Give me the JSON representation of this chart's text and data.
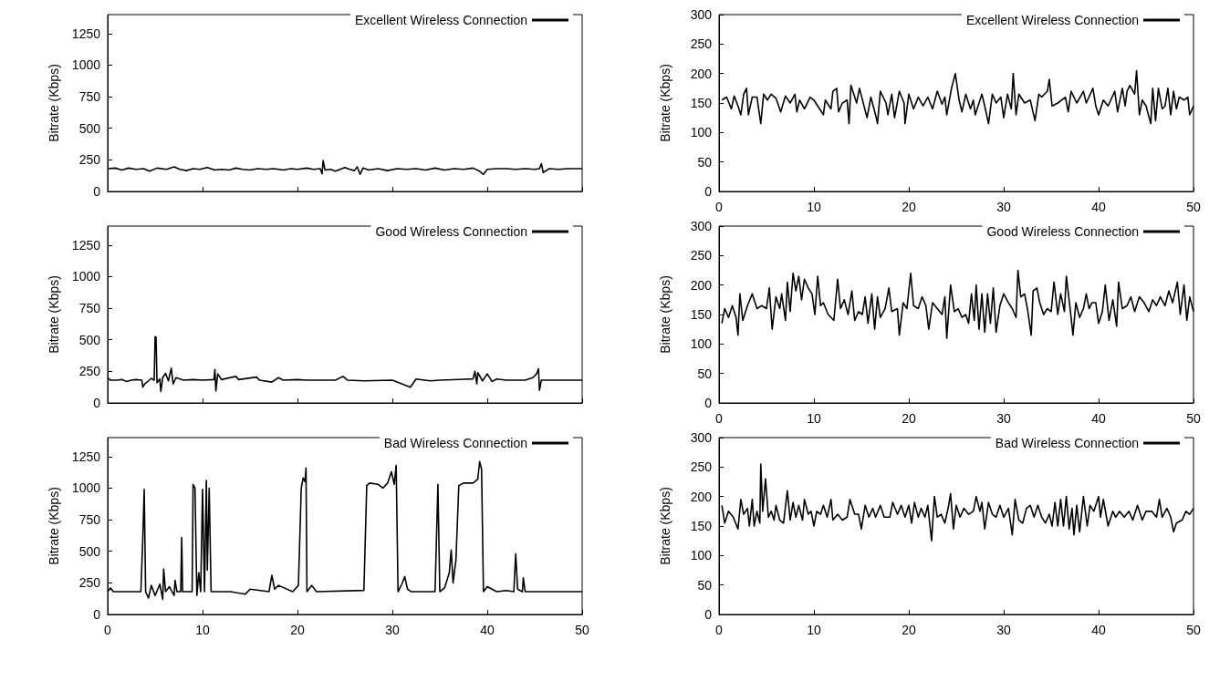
{
  "chart_data": [
    {
      "type": "line",
      "ylabel": "Bitrate (Kbps)",
      "xlim": [
        0,
        50
      ],
      "xticks": [
        0,
        10,
        20,
        30,
        40,
        50
      ],
      "ylim": [
        0,
        1400
      ],
      "yticks": [
        0,
        250,
        500,
        750,
        1000,
        1250
      ],
      "tick_labels": "y",
      "grid": false,
      "legend": "top right",
      "marker": "none",
      "line_style": "solid",
      "series": [
        {
          "name": "Excellent Wireless Connection",
          "color": "#000000",
          "x": [
            0,
            0.8,
            1.5,
            2.2,
            3,
            3.8,
            4.4,
            5.2,
            6.2,
            7,
            7.6,
            8.3,
            9,
            9.7,
            10.5,
            11.3,
            12,
            12.8,
            13.5,
            14.2,
            15,
            15.8,
            16.7,
            17.5,
            18.5,
            19.3,
            20,
            21,
            21.7,
            22.4,
            22.6,
            22.7,
            22.9,
            23.5,
            24,
            25,
            25.5,
            26,
            26.3,
            26.6,
            26.9,
            27.5,
            28.5,
            29.5,
            30.5,
            31.5,
            32.5,
            33.5,
            34.5,
            35.5,
            36.5,
            37.5,
            38.5,
            39.2,
            39.6,
            40,
            41,
            42,
            43,
            44,
            45,
            45.5,
            45.7,
            45.9,
            46.5,
            47.5,
            48.5,
            50
          ],
          "values": [
            180,
            185,
            170,
            185,
            175,
            180,
            160,
            185,
            175,
            195,
            175,
            165,
            180,
            175,
            190,
            170,
            175,
            170,
            185,
            175,
            170,
            180,
            175,
            180,
            170,
            180,
            175,
            185,
            175,
            180,
            140,
            245,
            170,
            175,
            160,
            190,
            175,
            165,
            195,
            135,
            185,
            170,
            180,
            165,
            180,
            175,
            180,
            170,
            185,
            170,
            180,
            175,
            185,
            160,
            135,
            175,
            180,
            180,
            175,
            180,
            175,
            180,
            220,
            150,
            180,
            175,
            180,
            180
          ]
        }
      ]
    },
    {
      "type": "line",
      "ylabel": "Bitrate (Kbps)",
      "xlim": [
        0,
        50
      ],
      "xticks": [
        0,
        10,
        20,
        30,
        40,
        50
      ],
      "ylim": [
        0,
        300
      ],
      "yticks": [
        0,
        50,
        100,
        150,
        200,
        250,
        300
      ],
      "grid": false,
      "legend": "top right",
      "marker": "none",
      "line_style": "solid",
      "series": [
        {
          "name": "Excellent Wireless Connection",
          "color": "#000000",
          "x": [
            0.3,
            0.8,
            1.3,
            1.6,
            2,
            2.3,
            2.6,
            2.9,
            3.1,
            3.5,
            4,
            4.4,
            4.7,
            5.1,
            5.5,
            6,
            6.5,
            7,
            7.5,
            8,
            8.2,
            8.5,
            9,
            9.6,
            10,
            10.6,
            11,
            11.2,
            11.8,
            12,
            12.4,
            12.6,
            13,
            13.5,
            13.7,
            13.9,
            14.5,
            14.8,
            15.2,
            15.6,
            16,
            16.5,
            16.7,
            17,
            17.6,
            17.8,
            18.2,
            18.5,
            19,
            19.5,
            19.6,
            20,
            20.5,
            21,
            21.5,
            22,
            22.5,
            23,
            23.5,
            23.8,
            24,
            24.5,
            24.9,
            25.3,
            25.6,
            26,
            26.5,
            26.8,
            27,
            27.7,
            28,
            28.4,
            28.8,
            29.2,
            29.7,
            30,
            30.4,
            30.8,
            31,
            31.3,
            31.6,
            32.2,
            32.8,
            33.3,
            33.7,
            34,
            34.6,
            34.8,
            35.1,
            35.7,
            36.5,
            36.8,
            37.1,
            37.7,
            38.4,
            38.7,
            39.4,
            39.7,
            40,
            40.5,
            41,
            41.7,
            42,
            42.5,
            42.8,
            43,
            43.3,
            43.8,
            44,
            44.3,
            44.6,
            45,
            45.5,
            45.7,
            46,
            46.3,
            46.7,
            47,
            47.3,
            47.6,
            47.9,
            48.2,
            48.5,
            49,
            49.4,
            49.6,
            50
          ],
          "values": [
            155,
            160,
            140,
            162,
            145,
            130,
            165,
            175,
            130,
            160,
            160,
            115,
            165,
            155,
            165,
            158,
            135,
            162,
            150,
            165,
            135,
            155,
            140,
            160,
            155,
            140,
            130,
            155,
            140,
            170,
            175,
            135,
            150,
            155,
            115,
            180,
            150,
            175,
            150,
            125,
            160,
            130,
            115,
            170,
            150,
            130,
            165,
            125,
            170,
            150,
            115,
            165,
            140,
            160,
            145,
            160,
            140,
            170,
            148,
            160,
            130,
            175,
            200,
            155,
            135,
            165,
            140,
            155,
            130,
            165,
            145,
            115,
            165,
            150,
            160,
            125,
            165,
            140,
            200,
            130,
            165,
            150,
            155,
            120,
            165,
            160,
            170,
            190,
            145,
            150,
            160,
            135,
            170,
            150,
            170,
            150,
            175,
            145,
            130,
            155,
            145,
            170,
            135,
            175,
            145,
            170,
            180,
            165,
            205,
            130,
            155,
            145,
            115,
            175,
            120,
            175,
            140,
            145,
            175,
            130,
            170,
            140,
            160,
            155,
            160,
            130,
            145
          ]
        }
      ]
    },
    {
      "type": "line",
      "ylabel": "Bitrate (Kbps)",
      "xlim": [
        0,
        50
      ],
      "xticks": [
        0,
        10,
        20,
        30,
        40,
        50
      ],
      "ylim": [
        0,
        1400
      ],
      "yticks": [
        0,
        250,
        500,
        750,
        1000,
        1250
      ],
      "tick_labels": "y",
      "grid": false,
      "legend": "top right",
      "marker": "none",
      "line_style": "solid",
      "series": [
        {
          "name": "Good Wireless Connection",
          "color": "#000000",
          "x": [
            0,
            0.3,
            1,
            1.5,
            2,
            2.5,
            3,
            3.6,
            3.7,
            3.9,
            4.3,
            4.6,
            4.9,
            5.0,
            5.1,
            5.2,
            5.5,
            5.6,
            5.8,
            6.1,
            6.4,
            6.7,
            6.9,
            7.2,
            8,
            9,
            10,
            11.2,
            11.3,
            11.4,
            11.6,
            12,
            13.5,
            13.8,
            15.7,
            16,
            17.3,
            18,
            18.5,
            20,
            21,
            24,
            24.8,
            25.3,
            27,
            30,
            31.9,
            32.5,
            34,
            35,
            38.5,
            38.7,
            38.9,
            39,
            39.5,
            40,
            40.5,
            41,
            42,
            44,
            44.8,
            45.2,
            45.4,
            45.5,
            45.7,
            47,
            50
          ],
          "values": [
            200,
            180,
            180,
            185,
            170,
            180,
            185,
            180,
            125,
            150,
            175,
            195,
            180,
            525,
            520,
            160,
            190,
            90,
            200,
            235,
            175,
            275,
            150,
            200,
            180,
            185,
            180,
            185,
            265,
            95,
            230,
            185,
            210,
            185,
            205,
            180,
            165,
            200,
            180,
            185,
            180,
            180,
            210,
            180,
            175,
            180,
            125,
            190,
            175,
            180,
            190,
            250,
            150,
            240,
            175,
            230,
            170,
            190,
            180,
            180,
            200,
            230,
            270,
            100,
            180,
            180,
            180
          ]
        }
      ]
    },
    {
      "type": "line",
      "ylabel": "Bitrate (Kbps)",
      "xlim": [
        0,
        50
      ],
      "xticks": [
        0,
        10,
        20,
        30,
        40,
        50
      ],
      "ylim": [
        0,
        300
      ],
      "yticks": [
        0,
        50,
        100,
        150,
        200,
        250,
        300
      ],
      "grid": false,
      "legend": "top right",
      "marker": "none",
      "line_style": "solid",
      "series": [
        {
          "name": "Good Wireless Connection",
          "color": "#000000",
          "x": [
            0.3,
            0.6,
            1,
            1.4,
            1.8,
            2,
            2.2,
            2.5,
            3,
            3.5,
            4,
            4.5,
            5,
            5.3,
            5.6,
            6,
            6.4,
            6.6,
            7,
            7.2,
            7.5,
            7.8,
            8.1,
            8.4,
            8.7,
            9,
            9.4,
            9.8,
            10.1,
            10.4,
            10.7,
            11,
            11.5,
            12.1,
            12.5,
            12.8,
            13.2,
            13.6,
            14,
            14.3,
            14.7,
            15.1,
            15.4,
            15.7,
            16.1,
            16.4,
            16.7,
            17,
            17.5,
            17.9,
            18.2,
            18.8,
            19,
            19.4,
            19.8,
            20.2,
            20.5,
            21,
            21.4,
            21.8,
            22.1,
            22.5,
            23,
            23.5,
            23.8,
            24,
            24.4,
            24.8,
            25.2,
            25.6,
            26,
            26.3,
            26.6,
            26.9,
            27.1,
            27.4,
            27.7,
            28,
            28.3,
            28.6,
            28.9,
            29.2,
            29.6,
            30,
            30.5,
            30.9,
            31.3,
            31.5,
            31.8,
            32.2,
            32.5,
            32.9,
            33.1,
            33.5,
            33.8,
            34.2,
            34.6,
            35,
            35.3,
            35.7,
            36,
            36.4,
            36.6,
            37,
            37.3,
            37.6,
            38,
            38.4,
            38.7,
            39,
            39.3,
            39.7,
            40,
            40.4,
            40.7,
            41.1,
            41.5,
            41.9,
            42.1,
            42.5,
            43,
            43.4,
            43.8,
            44.3,
            44.8,
            45.3,
            45.7,
            46.1,
            46.5,
            47,
            47.4,
            47.8,
            48.3,
            48.6,
            49,
            49.3,
            49.6,
            50
          ],
          "values": [
            135,
            160,
            145,
            165,
            145,
            115,
            185,
            140,
            165,
            185,
            160,
            165,
            160,
            195,
            125,
            180,
            160,
            185,
            140,
            205,
            155,
            220,
            190,
            215,
            175,
            210,
            195,
            185,
            150,
            215,
            165,
            170,
            150,
            140,
            210,
            160,
            175,
            150,
            190,
            140,
            155,
            150,
            180,
            135,
            185,
            125,
            180,
            145,
            160,
            195,
            155,
            160,
            115,
            170,
            160,
            220,
            165,
            160,
            180,
            165,
            125,
            170,
            160,
            150,
            180,
            110,
            200,
            155,
            160,
            145,
            150,
            135,
            185,
            140,
            200,
            125,
            185,
            120,
            185,
            135,
            195,
            120,
            165,
            185,
            170,
            160,
            145,
            225,
            180,
            185,
            160,
            115,
            190,
            195,
            170,
            150,
            160,
            155,
            205,
            150,
            185,
            155,
            215,
            160,
            115,
            170,
            145,
            160,
            185,
            160,
            170,
            170,
            135,
            155,
            200,
            140,
            175,
            130,
            205,
            160,
            165,
            180,
            155,
            180,
            170,
            155,
            175,
            165,
            180,
            165,
            190,
            170,
            205,
            150,
            200,
            140,
            180,
            155
          ]
        }
      ]
    },
    {
      "type": "line",
      "ylabel": "Bitrate (Kbps)",
      "xlim": [
        0,
        50
      ],
      "xticks": [
        0,
        10,
        20,
        30,
        40,
        50
      ],
      "ylim": [
        0,
        1400
      ],
      "yticks": [
        0,
        250,
        500,
        750,
        1000,
        1250
      ],
      "grid": false,
      "legend": "top right",
      "marker": "none",
      "line_style": "solid",
      "series": [
        {
          "name": "Bad Wireless Connection",
          "color": "#000000",
          "x": [
            0,
            0.3,
            0.6,
            3.5,
            3.7,
            3.85,
            4.0,
            4.3,
            4.6,
            5.0,
            5.5,
            5.8,
            5.9,
            6.1,
            6.5,
            7.0,
            7.1,
            7.3,
            7.7,
            7.8,
            7.9,
            8.9,
            9.0,
            9.2,
            9.4,
            9.6,
            9.8,
            10.0,
            10.2,
            10.4,
            10.5,
            10.7,
            10.9,
            13,
            14.5,
            15,
            17.0,
            17.3,
            17.6,
            18,
            19.5,
            20.1,
            20.4,
            20.6,
            20.8,
            20.9,
            21.0,
            21.5,
            22,
            27.0,
            27.3,
            27.6,
            28.5,
            29,
            29.5,
            29.9,
            30.2,
            30.4,
            30.6,
            31,
            31.3,
            31.6,
            32,
            34.5,
            34.8,
            35.0,
            35.5,
            36.0,
            36.2,
            36.4,
            36.7,
            37.0,
            37.5,
            38.5,
            39.0,
            39.2,
            39.4,
            39.6,
            40,
            41,
            42,
            42.8,
            43.0,
            43.2,
            43.7,
            43.8,
            44,
            50
          ],
          "values": [
            180,
            210,
            180,
            180,
            600,
            990,
            180,
            130,
            230,
            150,
            240,
            120,
            360,
            180,
            220,
            150,
            270,
            180,
            180,
            610,
            180,
            180,
            1030,
            1000,
            150,
            330,
            180,
            990,
            180,
            1060,
            350,
            1000,
            180,
            180,
            160,
            200,
            180,
            310,
            200,
            230,
            180,
            230,
            1000,
            1080,
            1050,
            1160,
            180,
            230,
            180,
            190,
            1020,
            1040,
            1030,
            1000,
            1040,
            1130,
            1030,
            1180,
            180,
            240,
            300,
            200,
            180,
            180,
            1030,
            180,
            210,
            330,
            510,
            250,
            430,
            1020,
            1040,
            1040,
            1070,
            1210,
            1150,
            180,
            220,
            180,
            190,
            180,
            480,
            200,
            180,
            290,
            180,
            180
          ]
        }
      ]
    },
    {
      "type": "line",
      "ylabel": "Bitrate (Kbps)",
      "xlim": [
        0,
        50
      ],
      "xticks": [
        0,
        10,
        20,
        30,
        40,
        50
      ],
      "ylim": [
        0,
        300
      ],
      "yticks": [
        0,
        50,
        100,
        150,
        200,
        250,
        300
      ],
      "grid": false,
      "legend": "top right",
      "marker": "none",
      "line_style": "solid",
      "series": [
        {
          "name": "Bad Wireless Connection",
          "color": "#000000",
          "x": [
            0.3,
            0.6,
            1,
            1.5,
            2,
            2.3,
            2.6,
            3,
            3.2,
            3.5,
            3.7,
            4,
            4.3,
            4.4,
            4.6,
            4.9,
            5.2,
            5.5,
            5.8,
            6,
            6.4,
            6.8,
            7.2,
            7.5,
            7.8,
            8.1,
            8.4,
            8.8,
            9,
            9.4,
            9.7,
            10,
            10.3,
            10.7,
            11,
            11.4,
            11.8,
            12,
            12.5,
            13,
            13.5,
            13.8,
            14.3,
            14.7,
            15,
            15.4,
            15.8,
            16.2,
            16.5,
            17,
            17.4,
            18,
            18.3,
            18.8,
            19.2,
            19.6,
            20,
            20.3,
            20.6,
            21,
            21.3,
            21.7,
            22,
            22.4,
            22.7,
            23,
            23.4,
            23.8,
            24.2,
            24.4,
            24.7,
            25,
            25.4,
            25.8,
            26.3,
            26.8,
            27.1,
            27.5,
            27.7,
            28,
            28.4,
            28.8,
            29.2,
            29.6,
            30,
            30.5,
            30.9,
            31.2,
            31.6,
            32,
            32.4,
            32.8,
            33.2,
            33.6,
            34,
            34.4,
            34.8,
            35.1,
            35.4,
            35.7,
            36,
            36.3,
            36.6,
            36.9,
            37.2,
            37.4,
            37.7,
            38,
            38.4,
            38.8,
            39.1,
            39.5,
            40,
            40.2,
            40.5,
            41,
            41.5,
            41.8,
            42.2,
            42.7,
            43.2,
            43.6,
            44.1,
            44.6,
            45,
            45.6,
            46.1,
            46.4,
            46.7,
            47.2,
            47.6,
            47.9,
            48.2,
            48.8,
            49.2,
            49.6,
            50
          ],
          "values": [
            185,
            155,
            175,
            165,
            145,
            195,
            170,
            180,
            150,
            195,
            150,
            175,
            155,
            255,
            175,
            230,
            165,
            175,
            160,
            185,
            160,
            155,
            210,
            160,
            190,
            165,
            185,
            160,
            195,
            170,
            175,
            150,
            175,
            170,
            185,
            165,
            195,
            160,
            170,
            160,
            165,
            195,
            170,
            170,
            145,
            185,
            165,
            180,
            165,
            185,
            165,
            165,
            190,
            170,
            185,
            165,
            185,
            155,
            190,
            165,
            180,
            165,
            185,
            125,
            200,
            165,
            170,
            155,
            185,
            205,
            145,
            185,
            165,
            180,
            170,
            175,
            200,
            175,
            190,
            145,
            190,
            170,
            165,
            185,
            165,
            180,
            135,
            195,
            160,
            155,
            180,
            185,
            165,
            185,
            165,
            155,
            170,
            150,
            190,
            150,
            195,
            150,
            200,
            145,
            180,
            135,
            185,
            140,
            200,
            150,
            185,
            175,
            200,
            165,
            195,
            150,
            175,
            165,
            175,
            165,
            175,
            160,
            185,
            160,
            175,
            175,
            165,
            195,
            165,
            180,
            165,
            140,
            155,
            160,
            175,
            170,
            180
          ]
        }
      ]
    }
  ]
}
